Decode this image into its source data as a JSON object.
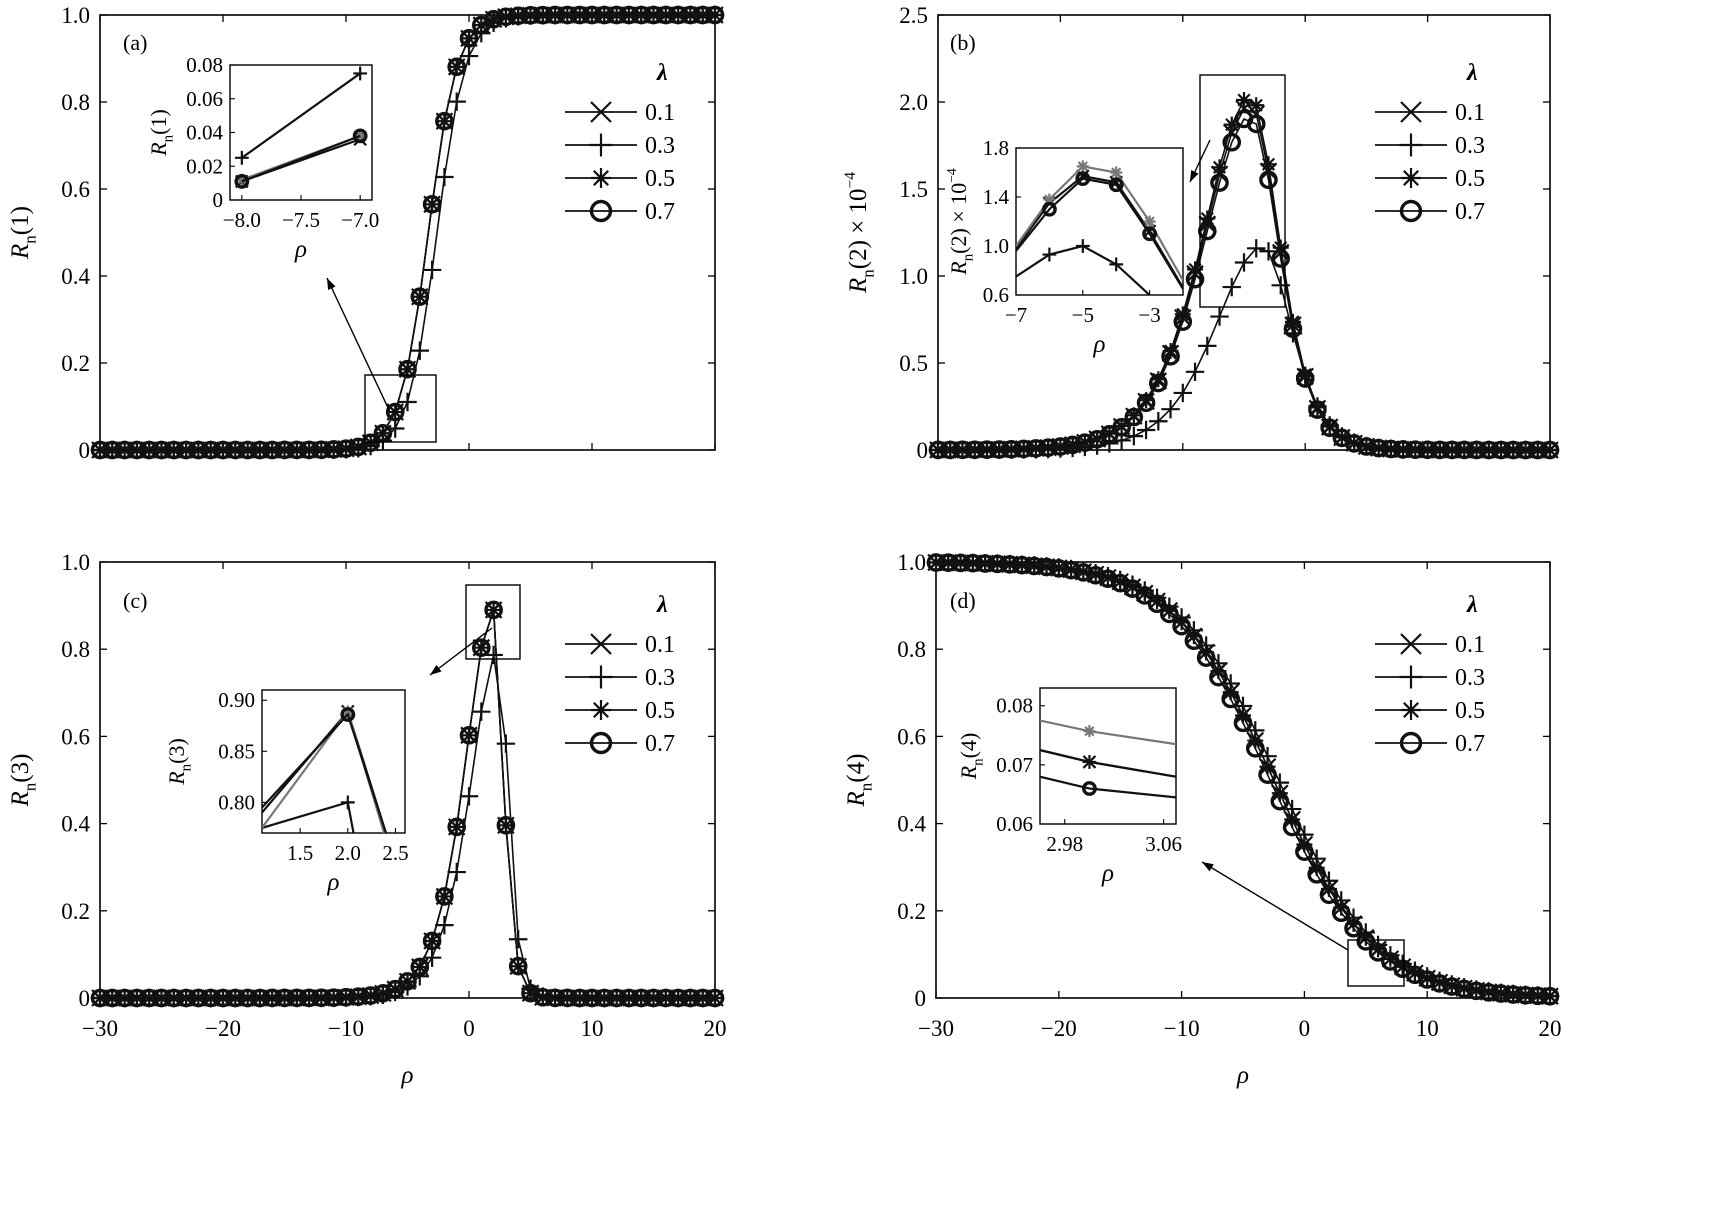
{
  "chart_data": [
    {
      "panel": "(a)",
      "type": "line",
      "xlabel": "",
      "ylabel": "Rn(1)",
      "xlim": [
        -30,
        20
      ],
      "ylim": [
        0,
        1.0
      ],
      "xticks": [
        "−30",
        "−20",
        "−10",
        "0",
        "10",
        "20"
      ],
      "yticks": [
        "0",
        "0.2",
        "0.4",
        "0.6",
        "0.8",
        "1.0"
      ],
      "legend_title": "λ",
      "legend_placement": "right",
      "series": [
        {
          "name": "0.1",
          "marker": "x",
          "curve": "sigmoid",
          "center": -3.3,
          "scale": 1.15,
          "top": 1.0
        },
        {
          "name": "0.3",
          "marker": "+",
          "curve": "sigmoid",
          "center": -2.6,
          "scale": 1.15,
          "top": 1.0
        },
        {
          "name": "0.5",
          "marker": "star",
          "curve": "sigmoid",
          "center": -3.3,
          "scale": 1.15,
          "top": 1.0
        },
        {
          "name": "0.7",
          "marker": "circle",
          "curve": "sigmoid",
          "center": -3.3,
          "scale": 1.15,
          "top": 1.0
        }
      ],
      "inset": {
        "xlabel": "ρ",
        "ylabel": "Rn(1)",
        "xlim": [
          -8.1,
          -6.9
        ],
        "ylim": [
          0,
          0.08
        ],
        "xticks": [
          "−8.0",
          "−7.5",
          "−7.0"
        ],
        "yticks": [
          "0",
          "0.02",
          "0.04",
          "0.06",
          "0.08"
        ],
        "series": [
          {
            "name": "0.1",
            "x": [
              -8.0,
              -7.0
            ],
            "y": [
              0.011,
              0.036
            ]
          },
          {
            "name": "0.3",
            "x": [
              -8.0,
              -7.0
            ],
            "y": [
              0.025,
              0.075
            ]
          },
          {
            "name": "0.5",
            "x": [
              -8.0,
              -7.0
            ],
            "y": [
              0.012,
              0.038
            ]
          },
          {
            "name": "0.7",
            "x": [
              -8.0,
              -7.0
            ],
            "y": [
              0.011,
              0.038
            ]
          }
        ]
      }
    },
    {
      "panel": "(b)",
      "type": "line",
      "xlabel": "",
      "ylabel": "Rn(2) × 10^−4",
      "xlim": [
        -30,
        20
      ],
      "ylim": [
        0,
        2.5
      ],
      "xticks": [
        "−30",
        "−20",
        "−10",
        "0",
        "10",
        "20"
      ],
      "yticks": [
        "0",
        "0.5",
        "1.0",
        "1.5",
        "2.0",
        "2.5"
      ],
      "legend_title": "λ",
      "legend_placement": "right",
      "series": [
        {
          "name": "0.1",
          "marker": "x",
          "curve": "peak",
          "center": -4.5,
          "sl": 2.6,
          "sr": 1.6,
          "amp": 1.98
        },
        {
          "name": "0.3",
          "marker": "+",
          "curve": "peak",
          "center": -3.5,
          "sl": 2.6,
          "sr": 1.6,
          "amp": 1.17
        },
        {
          "name": "0.5",
          "marker": "star",
          "curve": "peak",
          "center": -4.5,
          "sl": 2.6,
          "sr": 1.6,
          "amp": 2.03
        },
        {
          "name": "0.7",
          "marker": "circle",
          "curve": "peak",
          "center": -4.5,
          "sl": 2.6,
          "sr": 1.6,
          "amp": 1.92
        }
      ],
      "inset": {
        "xlabel": "ρ",
        "ylabel": "Rn(2) × 10^−4",
        "xlim": [
          -7,
          -2
        ],
        "ylim": [
          0.6,
          1.8
        ],
        "xticks": [
          "−7",
          "−5",
          "−3"
        ],
        "yticks": [
          "0.6",
          "1.0",
          "1.4",
          "1.8"
        ],
        "series": [
          {
            "name": "0.1",
            "x": [
              -7,
              -6,
              -5,
              -4,
              -3,
              -2
            ],
            "y": [
              0.98,
              1.35,
              1.57,
              1.52,
              1.12,
              0.66
            ]
          },
          {
            "name": "0.3",
            "x": [
              -7,
              -6,
              -5,
              -4,
              -3,
              -2
            ],
            "y": [
              0.75,
              0.93,
              1.0,
              0.85,
              0.6,
              0.5
            ]
          },
          {
            "name": "0.5",
            "x": [
              -7,
              -6,
              -5,
              -4,
              -3,
              -2
            ],
            "y": [
              1.0,
              1.38,
              1.65,
              1.6,
              1.2,
              0.72
            ]
          },
          {
            "name": "0.7",
            "x": [
              -7,
              -6,
              -5,
              -4,
              -3,
              -2
            ],
            "y": [
              0.96,
              1.3,
              1.55,
              1.5,
              1.1,
              0.65
            ]
          }
        ]
      }
    },
    {
      "panel": "(c)",
      "type": "line",
      "xlabel": "ρ",
      "ylabel": "Rn(3)",
      "xlim": [
        -30,
        20
      ],
      "ylim": [
        0,
        1.0
      ],
      "xticks": [
        "−30",
        "−20",
        "−10",
        "0",
        "10",
        "20"
      ],
      "yticks": [
        "0",
        "0.2",
        "0.4",
        "0.6",
        "0.8",
        "1.0"
      ],
      "legend_title": "λ",
      "legend_placement": "right",
      "series": [
        {
          "name": "0.1",
          "marker": "x",
          "curve": "peak",
          "center": 2.0,
          "sl": 1.55,
          "sr": 0.52,
          "amp": 0.89
        },
        {
          "name": "0.3",
          "marker": "+",
          "curve": "peak",
          "center": 2.4,
          "sl": 1.55,
          "sr": 0.52,
          "amp": 0.8
        },
        {
          "name": "0.5",
          "marker": "star",
          "curve": "peak",
          "center": 2.0,
          "sl": 1.55,
          "sr": 0.52,
          "amp": 0.89
        },
        {
          "name": "0.7",
          "marker": "circle",
          "curve": "peak",
          "center": 2.0,
          "sl": 1.55,
          "sr": 0.52,
          "amp": 0.89
        }
      ],
      "inset": {
        "xlabel": "ρ",
        "ylabel": "Rn(3)",
        "xlim": [
          1.1,
          2.6
        ],
        "ylim": [
          0.77,
          0.91
        ],
        "xticks": [
          "1.5",
          "2.0",
          "2.5"
        ],
        "yticks": [
          "0.80",
          "0.85",
          "0.90"
        ],
        "series": [
          {
            "name": "0.1",
            "x": [
              1.1,
              2.0,
              2.4
            ],
            "y": [
              0.79,
              0.889,
              0.77
            ]
          },
          {
            "name": "0.3",
            "x": [
              1.1,
              2.0,
              2.06
            ],
            "y": [
              0.775,
              0.8,
              0.77
            ]
          },
          {
            "name": "0.5",
            "x": [
              1.1,
              2.0,
              2.38
            ],
            "y": [
              0.775,
              0.889,
              0.77
            ]
          },
          {
            "name": "0.7",
            "x": [
              1.1,
              2.0,
              2.4
            ],
            "y": [
              0.795,
              0.886,
              0.77
            ]
          }
        ]
      }
    },
    {
      "panel": "(d)",
      "type": "line",
      "xlabel": "ρ",
      "ylabel": "Rn(4)",
      "xlim": [
        -30,
        20
      ],
      "ylim": [
        0,
        1.0
      ],
      "xticks": [
        "−30",
        "−20",
        "−10",
        "0",
        "10",
        "20"
      ],
      "yticks": [
        "0",
        "0.2",
        "0.4",
        "0.6",
        "0.8",
        "1.0"
      ],
      "legend_title": "λ",
      "legend_placement": "right",
      "series": [
        {
          "name": "0.1",
          "marker": "x",
          "curve": "decay",
          "center": -2.5,
          "scale": 4.1,
          "top": 1.0
        },
        {
          "name": "0.3",
          "marker": "+",
          "curve": "decay",
          "center": -2.1,
          "scale": 4.1,
          "top": 1.0
        },
        {
          "name": "0.5",
          "marker": "star",
          "curve": "decay",
          "center": -2.5,
          "scale": 4.1,
          "top": 1.0
        },
        {
          "name": "0.7",
          "marker": "circle",
          "curve": "decay",
          "center": -2.8,
          "scale": 4.1,
          "top": 1.0
        }
      ],
      "inset": {
        "xlabel": "ρ",
        "ylabel": "Rn(4)",
        "xlim": [
          2.96,
          3.07
        ],
        "ylim": [
          0.06,
          0.083
        ],
        "xticks": [
          "2.98",
          "3.06"
        ],
        "yticks": [
          "0.06",
          "0.07",
          "0.08"
        ],
        "series": [
          {
            "name": "0.1",
            "x": [
              2.96,
              3.0,
              3.07
            ],
            "y": [
              0.0725,
              0.0705,
              0.068
            ]
          },
          {
            "name": "0.3",
            "x": [
              2.96,
              3.0,
              3.07
            ],
            "y": [
              0.0725,
              0.0705,
              0.068
            ]
          },
          {
            "name": "0.5",
            "x": [
              2.96,
              3.0,
              3.07
            ],
            "y": [
              0.0775,
              0.0757,
              0.0735
            ]
          },
          {
            "name": "0.7",
            "x": [
              2.96,
              3.0,
              3.07
            ],
            "y": [
              0.068,
              0.066,
              0.0645
            ]
          }
        ]
      }
    }
  ]
}
